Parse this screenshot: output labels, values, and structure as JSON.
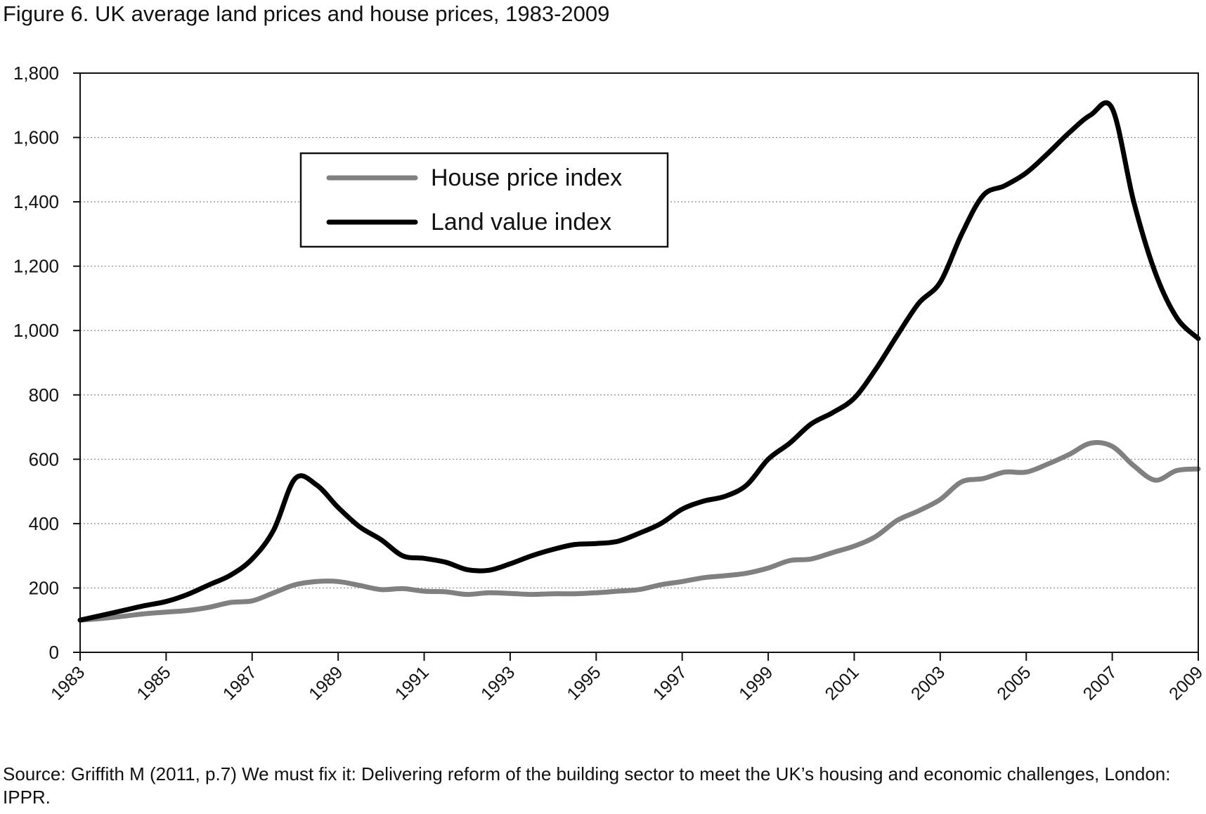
{
  "title": "Figure 6.  UK average land prices and house prices, 1983-2009",
  "source_note": "Source: Griffith M (2011, p.7) We must fix it: Delivering reform of the building sector to meet the UK’s housing and economic challenges, London: IPPR.",
  "chart_data": {
    "type": "line",
    "title": "Figure 6.  UK average land prices and house prices, 1983-2009",
    "xlabel": "",
    "ylabel": "",
    "xlim": [
      1983,
      2009
    ],
    "ylim": [
      0,
      1800
    ],
    "grid": "horizontal dotted",
    "legend_position": "upper-left",
    "x_ticks": [
      1983,
      1985,
      1987,
      1989,
      1991,
      1993,
      1995,
      1997,
      1999,
      2001,
      2003,
      2005,
      2007,
      2009
    ],
    "x_tick_labels": [
      "1983",
      "1985",
      "1987",
      "1989",
      "1991",
      "1993",
      "1995",
      "1997",
      "1999",
      "2001",
      "2003",
      "2005",
      "2007",
      "2009"
    ],
    "y_ticks": [
      0,
      200,
      400,
      600,
      800,
      1000,
      1200,
      1400,
      1600,
      1800
    ],
    "y_tick_labels": [
      "0",
      "200",
      "400",
      "600",
      "800",
      "1,000",
      "1,200",
      "1,400",
      "1,600",
      "1,800"
    ],
    "series": [
      {
        "name": "House price index",
        "color": "#808080",
        "x": [
          1983,
          1983.5,
          1984,
          1984.5,
          1985,
          1985.5,
          1986,
          1986.5,
          1987,
          1987.5,
          1988,
          1988.5,
          1989,
          1989.5,
          1990,
          1990.5,
          1991,
          1991.5,
          1992,
          1992.5,
          1993,
          1993.5,
          1994,
          1994.5,
          1995,
          1995.5,
          1996,
          1996.5,
          1997,
          1997.5,
          1998,
          1998.5,
          1999,
          1999.5,
          2000,
          2000.5,
          2001,
          2001.5,
          2002,
          2002.5,
          2003,
          2003.5,
          2004,
          2004.5,
          2005,
          2005.5,
          2006,
          2006.5,
          2007,
          2007.5,
          2008,
          2008.5,
          2009
        ],
        "values": [
          100,
          105,
          112,
          120,
          125,
          130,
          140,
          155,
          160,
          185,
          210,
          220,
          220,
          208,
          195,
          198,
          190,
          188,
          180,
          185,
          183,
          180,
          182,
          182,
          185,
          190,
          195,
          210,
          220,
          232,
          238,
          246,
          262,
          285,
          290,
          310,
          330,
          360,
          410,
          440,
          475,
          530,
          540,
          560,
          560,
          585,
          615,
          650,
          640,
          580,
          535,
          565,
          570
        ]
      },
      {
        "name": "Land value index",
        "color": "#000000",
        "x": [
          1983,
          1983.5,
          1984,
          1984.5,
          1985,
          1985.5,
          1986,
          1986.5,
          1987,
          1987.5,
          1988,
          1988.5,
          1989,
          1989.5,
          1990,
          1990.5,
          1991,
          1991.5,
          1992,
          1992.5,
          1993,
          1993.5,
          1994,
          1994.5,
          1995,
          1995.5,
          1996,
          1996.5,
          1997,
          1997.5,
          1998,
          1998.5,
          1999,
          1999.5,
          2000,
          2000.5,
          2001,
          2001.5,
          2002,
          2002.5,
          2003,
          2003.5,
          2004,
          2004.5,
          2005,
          2005.5,
          2006,
          2006.5,
          2007,
          2007.5,
          2008,
          2008.5,
          2009
        ],
        "values": [
          100,
          115,
          130,
          145,
          158,
          180,
          210,
          240,
          290,
          380,
          540,
          520,
          450,
          390,
          350,
          300,
          292,
          280,
          257,
          255,
          275,
          300,
          320,
          335,
          338,
          345,
          370,
          400,
          445,
          470,
          485,
          520,
          600,
          650,
          710,
          745,
          790,
          880,
          985,
          1085,
          1150,
          1300,
          1420,
          1450,
          1490,
          1550,
          1615,
          1670,
          1690,
          1400,
          1180,
          1040,
          975
        ]
      }
    ]
  }
}
